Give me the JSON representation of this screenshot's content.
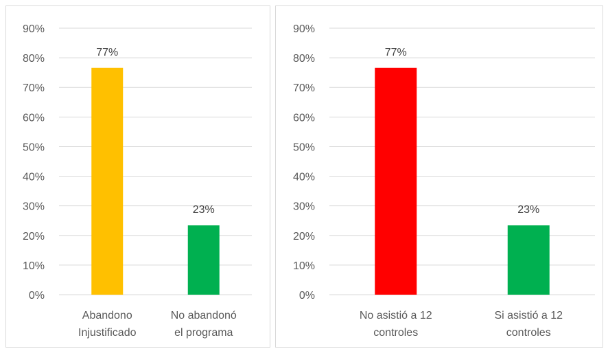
{
  "chart_data": [
    {
      "type": "bar",
      "categories": [
        [
          "Abandono",
          "Injustificado"
        ],
        [
          "No abandonó",
          "el programa"
        ]
      ],
      "values": [
        0.766,
        0.234
      ],
      "data_labels": [
        "77%",
        "23%"
      ],
      "colors": [
        "#FFC000",
        "#00B050"
      ],
      "yticks": [
        "0%",
        "10%",
        "20%",
        "30%",
        "40%",
        "50%",
        "60%",
        "70%",
        "80%",
        "90%"
      ],
      "ylim": [
        0,
        0.9
      ],
      "grid": true
    },
    {
      "type": "bar",
      "categories": [
        [
          "No asistió a 12",
          "controles"
        ],
        [
          "Si asistió a 12",
          "controles"
        ]
      ],
      "values": [
        0.766,
        0.234
      ],
      "data_labels": [
        "77%",
        "23%"
      ],
      "colors": [
        "#FF0000",
        "#00B050"
      ],
      "yticks": [
        "0%",
        "10%",
        "20%",
        "30%",
        "40%",
        "50%",
        "60%",
        "70%",
        "80%",
        "90%"
      ],
      "ylim": [
        0,
        0.9
      ],
      "grid": true
    }
  ]
}
